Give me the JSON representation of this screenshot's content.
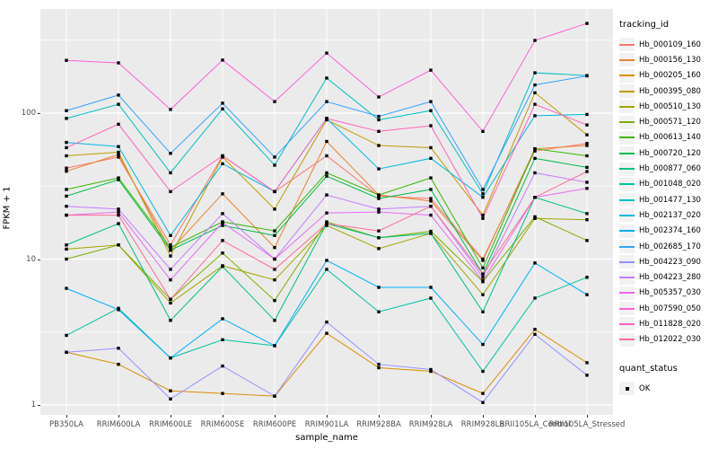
{
  "chart_data": {
    "type": "line",
    "xlabel": "sample_name",
    "ylabel": "FPKM + 1",
    "x_categories": [
      "PB350LA",
      "RRIM600LA",
      "RRIM600LE",
      "RRIM600SE",
      "RRIM600PE",
      "RRIM901LA",
      "RRIM928BA",
      "RRIM928LA",
      "RRIM928LB",
      "RRII105LA_Control",
      "RRII105LA_Stressed"
    ],
    "y_scale": "log10",
    "y_ticks": [
      1,
      10,
      100
    ],
    "y_minor_ticks": [
      3.162,
      31.62,
      316.2
    ],
    "ylim": [
      1,
      520
    ],
    "grid": true,
    "legend_title": "tracking_id",
    "legend2_title": "quant_status",
    "legend2_items": [
      "OK"
    ],
    "point_shape": "filled-square",
    "point_color": "#000000",
    "series": [
      {
        "name": "Hb_000109_160",
        "color": "#F8766D",
        "values": [
          42,
          50,
          12.5,
          51,
          29,
          51,
          27,
          26,
          10,
          55,
          62
        ]
      },
      {
        "name": "Hb_000156_130",
        "color": "#EA8331",
        "values": [
          40,
          52,
          11.5,
          28,
          12,
          64,
          27.5,
          25,
          9.8,
          57,
          60
        ]
      },
      {
        "name": "Hb_000205_160",
        "color": "#D89000",
        "values": [
          2.3,
          1.9,
          1.25,
          1.2,
          1.15,
          3.1,
          1.8,
          1.7,
          1.2,
          3.3,
          1.95
        ]
      },
      {
        "name": "Hb_000395_080",
        "color": "#C09B00",
        "values": [
          51,
          54,
          10.5,
          50,
          22,
          90,
          60,
          58,
          20,
          138,
          71
        ]
      },
      {
        "name": "Hb_000510_130",
        "color": "#A3A500",
        "values": [
          11.7,
          12.5,
          5.0,
          9.0,
          7.2,
          17,
          11.8,
          15,
          5.7,
          19,
          18.6
        ]
      },
      {
        "name": "Hb_000571_120",
        "color": "#7CAE00",
        "values": [
          10,
          12.5,
          5.3,
          11,
          5.2,
          18,
          14,
          15.5,
          7.0,
          19.5,
          13.4
        ]
      },
      {
        "name": "Hb_000613_140",
        "color": "#39B600",
        "values": [
          30,
          36,
          12,
          18,
          15.6,
          39,
          27.5,
          36,
          8.7,
          57,
          51
        ]
      },
      {
        "name": "Hb_000720_120",
        "color": "#00BB4E",
        "values": [
          27,
          35,
          11.5,
          17,
          14.5,
          37,
          26,
          30,
          7.9,
          49,
          42.5
        ]
      },
      {
        "name": "Hb_000877_060",
        "color": "#00BF7D",
        "values": [
          12.5,
          17.5,
          3.8,
          8.9,
          3.8,
          17.5,
          14,
          15,
          4.35,
          26.5,
          20.5
        ]
      },
      {
        "name": "Hb_001048_020",
        "color": "#00C1A3",
        "values": [
          3.0,
          4.6,
          2.1,
          2.8,
          2.55,
          8.5,
          4.35,
          5.4,
          1.7,
          5.4,
          7.5
        ]
      },
      {
        "name": "Hb_001477_130",
        "color": "#00BFC4",
        "values": [
          92,
          115,
          39,
          107,
          44,
          174,
          90,
          104,
          28,
          189,
          181
        ]
      },
      {
        "name": "Hb_002137_020",
        "color": "#00BAE0",
        "values": [
          63,
          59,
          14.5,
          45,
          29,
          92,
          41.5,
          49,
          26.5,
          96,
          98
        ]
      },
      {
        "name": "Hb_002374_160",
        "color": "#00B0F6",
        "values": [
          6.3,
          4.5,
          2.1,
          3.9,
          2.55,
          9.8,
          6.4,
          6.4,
          2.6,
          9.4,
          5.7
        ]
      },
      {
        "name": "Hb_002685_170",
        "color": "#35A2FF",
        "values": [
          104,
          133,
          53,
          117,
          50,
          120,
          95,
          120,
          30,
          156,
          180
        ]
      },
      {
        "name": "Hb_004223_090",
        "color": "#9590FF",
        "values": [
          2.3,
          2.45,
          1.1,
          1.85,
          1.15,
          3.7,
          1.9,
          1.75,
          1.04,
          3.05,
          1.6
        ]
      },
      {
        "name": "Hb_004223_280",
        "color": "#C77CFF",
        "values": [
          23,
          22,
          8.5,
          20.5,
          10,
          27.5,
          22,
          23,
          7.5,
          39,
          33.6
        ]
      },
      {
        "name": "Hb_005357_030",
        "color": "#E76BF3",
        "values": [
          20,
          21,
          7.2,
          17.8,
          10,
          20.7,
          21,
          20,
          7.1,
          26.5,
          30.5
        ]
      },
      {
        "name": "Hb_007590_050",
        "color": "#FA62DB",
        "values": [
          230,
          221,
          106,
          231,
          120,
          258,
          129,
          197,
          75,
          315,
          412
        ]
      },
      {
        "name": "Hb_011828_020",
        "color": "#FF62BC",
        "values": [
          58,
          84,
          29,
          51,
          29,
          92,
          75,
          82,
          19,
          115,
          83
        ]
      },
      {
        "name": "Hb_012022_030",
        "color": "#FF6A98",
        "values": [
          20,
          20,
          5.3,
          13.4,
          8.5,
          17.5,
          15.6,
          23,
          7.9,
          26.5,
          39.8
        ]
      }
    ]
  },
  "colors": {
    "panel_bg": "#EBEBEB",
    "grid_major": "#FFFFFF",
    "grid_minor": "#FFFFFF",
    "tick_text": "#4D4D4D",
    "axis_text": "#000000",
    "legend_key_bg": "#F2F2F2",
    "point": "#000000"
  }
}
